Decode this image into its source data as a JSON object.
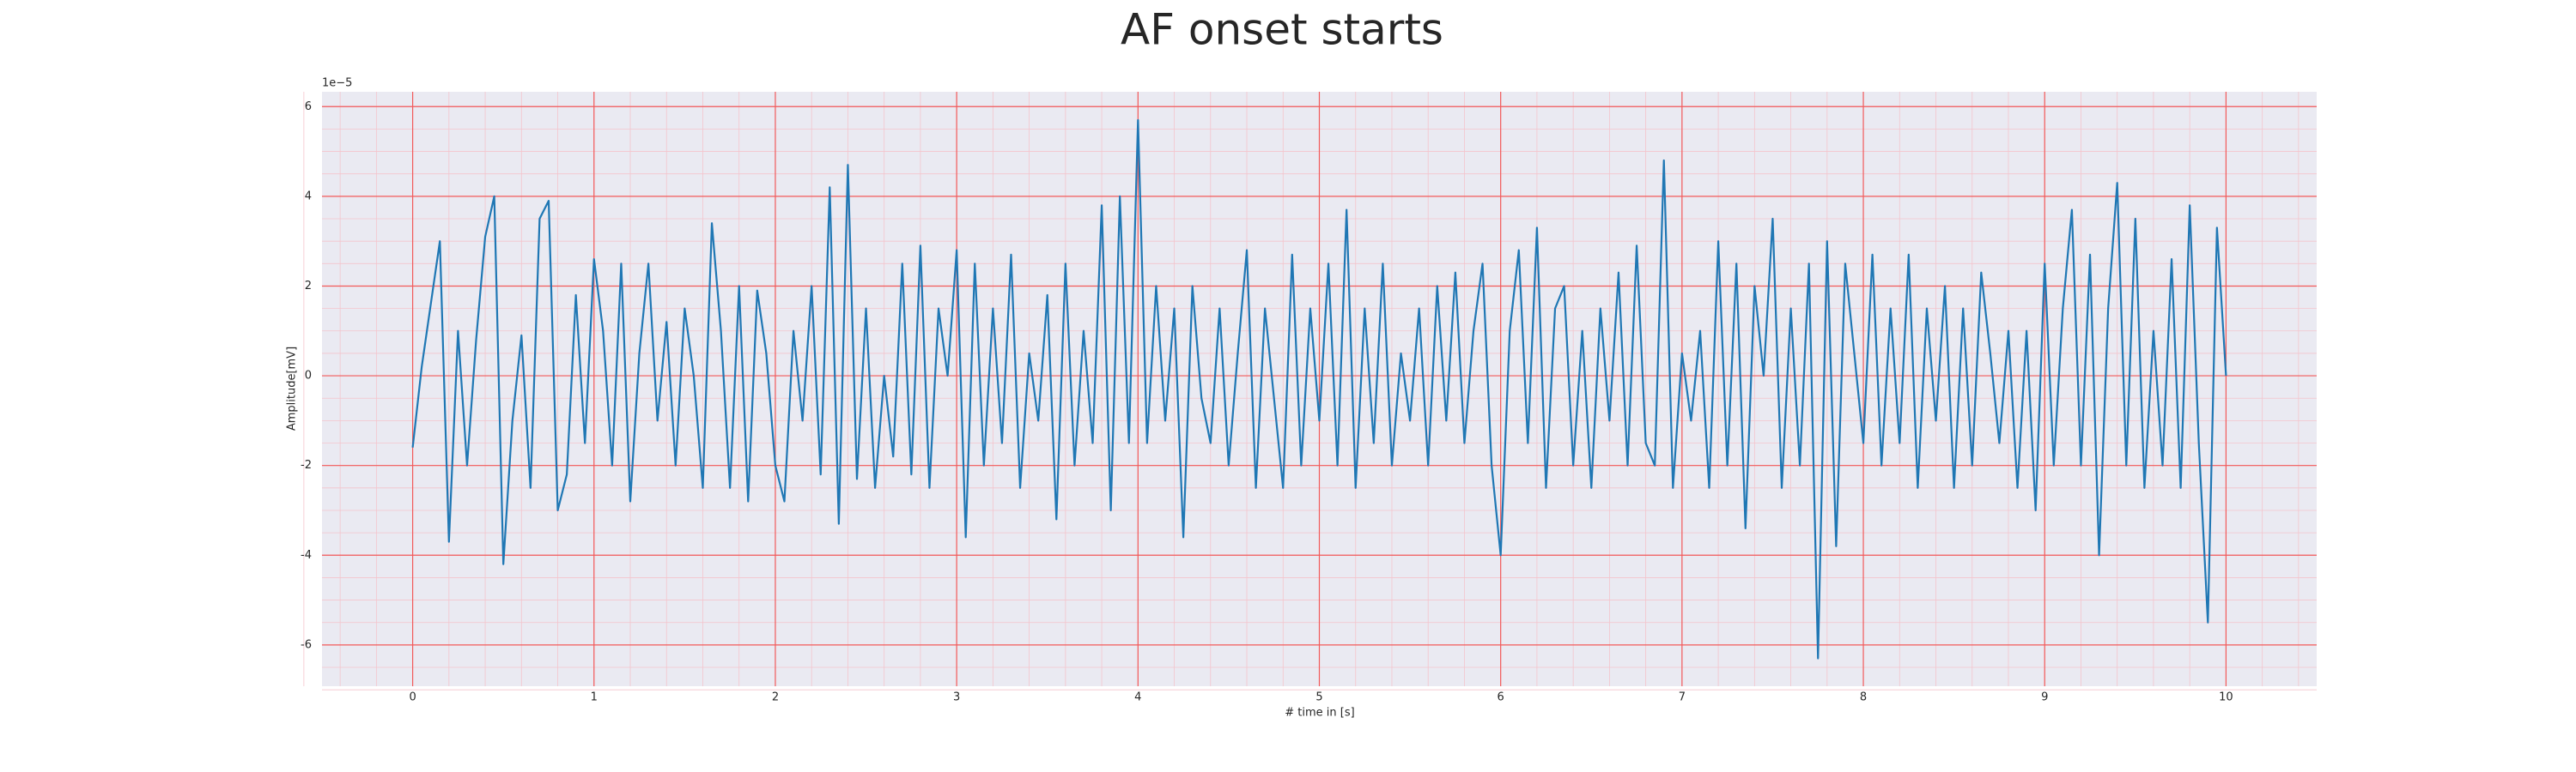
{
  "chart_data": {
    "type": "line",
    "title": "AF onset starts",
    "xlabel": "# time in [s]",
    "ylabel": "Amplitude[mV]",
    "y_offset_label": "1e−5",
    "color": "#1f77b4",
    "grid": true,
    "minor_grid": true,
    "xlim": [
      -0.5,
      10.5
    ],
    "ylim": [
      -6.92,
      6.33
    ],
    "xticks": [
      0,
      1,
      2,
      3,
      4,
      5,
      6,
      7,
      8,
      9,
      10
    ],
    "yticks": [
      -6,
      -4,
      -2,
      0,
      2,
      4,
      6
    ],
    "x": [
      0,
      0.05,
      0.1,
      0.15,
      0.2,
      0.25,
      0.3,
      0.35,
      0.4,
      0.45,
      0.5,
      0.55,
      0.6,
      0.65,
      0.7,
      0.75,
      0.8,
      0.85,
      0.9,
      0.95,
      1,
      1.05,
      1.1,
      1.15,
      1.2,
      1.25,
      1.3,
      1.35,
      1.4,
      1.45,
      1.5,
      1.55,
      1.6,
      1.65,
      1.7,
      1.75,
      1.8,
      1.85,
      1.9,
      1.95,
      2,
      2.05,
      2.1,
      2.15,
      2.2,
      2.25,
      2.3,
      2.35,
      2.4,
      2.45,
      2.5,
      2.55,
      2.6,
      2.65,
      2.7,
      2.75,
      2.8,
      2.85,
      2.9,
      2.95,
      3,
      3.05,
      3.1,
      3.15,
      3.2,
      3.25,
      3.3,
      3.35,
      3.4,
      3.45,
      3.5,
      3.55,
      3.6,
      3.65,
      3.7,
      3.75,
      3.8,
      3.85,
      3.9,
      3.95,
      4,
      4.05,
      4.1,
      4.15,
      4.2,
      4.25,
      4.3,
      4.35,
      4.4,
      4.45,
      4.5,
      4.55,
      4.6,
      4.65,
      4.7,
      4.75,
      4.8,
      4.85,
      4.9,
      4.95,
      5,
      5.05,
      5.1,
      5.15,
      5.2,
      5.25,
      5.3,
      5.35,
      5.4,
      5.45,
      5.5,
      5.55,
      5.6,
      5.65,
      5.7,
      5.75,
      5.8,
      5.85,
      5.9,
      5.95,
      6,
      6.05,
      6.1,
      6.15,
      6.2,
      6.25,
      6.3,
      6.35,
      6.4,
      6.45,
      6.5,
      6.55,
      6.6,
      6.65,
      6.7,
      6.75,
      6.8,
      6.85,
      6.9,
      6.95,
      7,
      7.05,
      7.1,
      7.15,
      7.2,
      7.25,
      7.3,
      7.35,
      7.4,
      7.45,
      7.5,
      7.55,
      7.6,
      7.65,
      7.7,
      7.75,
      7.8,
      7.85,
      7.9,
      7.95,
      8,
      8.05,
      8.1,
      8.15,
      8.2,
      8.25,
      8.3,
      8.35,
      8.4,
      8.45,
      8.5,
      8.55,
      8.6,
      8.65,
      8.7,
      8.75,
      8.8,
      8.85,
      8.9,
      8.95,
      9,
      9.05,
      9.1,
      9.15,
      9.2,
      9.25,
      9.3,
      9.35,
      9.4,
      9.45,
      9.5,
      9.55,
      9.6,
      9.65,
      9.7,
      9.75,
      9.8,
      9.85,
      9.9,
      9.95,
      10
    ],
    "values": [
      -1.6,
      0.2,
      1.6,
      3.0,
      -3.7,
      1.0,
      -2.0,
      0.8,
      3.1,
      4.0,
      -4.2,
      -1.0,
      0.9,
      -2.5,
      3.5,
      3.9,
      -3.0,
      -2.2,
      1.8,
      -1.5,
      2.6,
      1.0,
      -2.0,
      2.5,
      -2.8,
      0.5,
      2.5,
      -1.0,
      1.2,
      -2.0,
      1.5,
      0.0,
      -2.5,
      3.4,
      1.0,
      -2.5,
      2.0,
      -2.8,
      1.9,
      0.5,
      -2.0,
      -2.8,
      1.0,
      -1.0,
      2.0,
      -2.2,
      4.2,
      -3.3,
      4.7,
      -2.3,
      1.5,
      -2.5,
      0.0,
      -1.8,
      2.5,
      -2.2,
      2.9,
      -2.5,
      1.5,
      0.0,
      2.8,
      -3.6,
      2.5,
      -2.0,
      1.5,
      -1.5,
      2.7,
      -2.5,
      0.5,
      -1.0,
      1.8,
      -3.2,
      2.5,
      -2.0,
      1.0,
      -1.5,
      3.8,
      -3.0,
      4.0,
      -1.5,
      5.7,
      -1.5,
      2.0,
      -1.0,
      1.5,
      -3.6,
      2.0,
      -0.5,
      -1.5,
      1.5,
      -2.0,
      0.5,
      2.8,
      -2.5,
      1.5,
      -0.5,
      -2.5,
      2.7,
      -2.0,
      1.5,
      -1.0,
      2.5,
      -2.0,
      3.7,
      -2.5,
      1.5,
      -1.5,
      2.5,
      -2.0,
      0.5,
      -1.0,
      1.5,
      -2.0,
      2.0,
      -1.0,
      2.3,
      -1.5,
      1.0,
      2.5,
      -2.0,
      -4.0,
      1.0,
      2.8,
      -1.5,
      3.3,
      -2.5,
      1.5,
      2.0,
      -2.0,
      1.0,
      -2.5,
      1.5,
      -1.0,
      2.3,
      -2.0,
      2.9,
      -1.5,
      -2.0,
      4.8,
      -2.5,
      0.5,
      -1.0,
      1.0,
      -2.5,
      3.0,
      -2.0,
      2.5,
      -3.4,
      2.0,
      0.0,
      3.5,
      -2.5,
      1.5,
      -2.0,
      2.5,
      -6.3,
      3.0,
      -3.8,
      2.5,
      0.5,
      -1.5,
      2.7,
      -2.0,
      1.5,
      -1.5,
      2.7,
      -2.5,
      1.5,
      -1.0,
      2.0,
      -2.5,
      1.5,
      -2.0,
      2.3,
      0.5,
      -1.5,
      1.0,
      -2.5,
      1.0,
      -3.0,
      2.5,
      -2.0,
      1.5,
      3.7,
      -2.0,
      2.7,
      -4.0,
      1.5,
      4.3,
      -2.0,
      3.5,
      -2.5,
      1.0,
      -2.0,
      2.6,
      -2.5,
      3.8,
      -1.5,
      -5.5,
      3.3,
      0.0
    ]
  }
}
